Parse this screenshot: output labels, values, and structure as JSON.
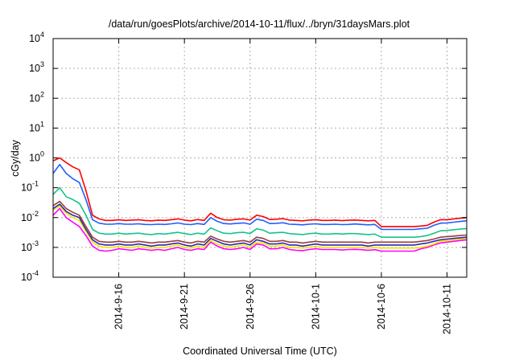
{
  "chart_data": {
    "type": "line",
    "title": "/data/run/goesPlots/archive/2014-10-11/flux/../bryn/31daysMars.plot",
    "xlabel": "Coordinated Universal Time (UTC)",
    "ylabel": "cGy/day",
    "yscale": "log",
    "ylim": [
      0.0001,
      10000
    ],
    "xlim": [
      "2014-09-11T00:00",
      "2014-10-12T12:00"
    ],
    "grid": true,
    "y_ticks": [
      {
        "value": 0.0001,
        "base": "10",
        "exp": "-4"
      },
      {
        "value": 0.001,
        "base": "10",
        "exp": "-3"
      },
      {
        "value": 0.01,
        "base": "10",
        "exp": "-2"
      },
      {
        "value": 0.1,
        "base": "10",
        "exp": "-1"
      },
      {
        "value": 1,
        "base": "10",
        "exp": "0"
      },
      {
        "value": 10,
        "base": "10",
        "exp": "1"
      },
      {
        "value": 100,
        "base": "10",
        "exp": "2"
      },
      {
        "value": 1000,
        "base": "10",
        "exp": "3"
      },
      {
        "value": 10000,
        "base": "10",
        "exp": "4"
      }
    ],
    "x_ticks": [
      {
        "date": "2014-09-16",
        "label": "2014-9-16"
      },
      {
        "date": "2014-09-21",
        "label": "2014-9-21"
      },
      {
        "date": "2014-09-26",
        "label": "2014-9-26"
      },
      {
        "date": "2014-10-01",
        "label": "2014-10-1"
      },
      {
        "date": "2014-10-06",
        "label": "2014-10-6"
      },
      {
        "date": "2014-10-11",
        "label": "2014-10-11"
      }
    ],
    "x": [
      "2014-09-11T00:00",
      "2014-09-11T12:00",
      "2014-09-12T00:00",
      "2014-09-12T12:00",
      "2014-09-13T00:00",
      "2014-09-13T12:00",
      "2014-09-14T00:00",
      "2014-09-14T12:00",
      "2014-09-15T00:00",
      "2014-09-15T12:00",
      "2014-09-16T00:00",
      "2014-09-16T12:00",
      "2014-09-17T00:00",
      "2014-09-17T12:00",
      "2014-09-18T00:00",
      "2014-09-18T12:00",
      "2014-09-19T00:00",
      "2014-09-19T12:00",
      "2014-09-20T00:00",
      "2014-09-20T12:00",
      "2014-09-21T00:00",
      "2014-09-21T12:00",
      "2014-09-22T00:00",
      "2014-09-22T12:00",
      "2014-09-23T00:00",
      "2014-09-23T12:00",
      "2014-09-24T00:00",
      "2014-09-24T12:00",
      "2014-09-25T00:00",
      "2014-09-25T12:00",
      "2014-09-26T00:00",
      "2014-09-26T12:00",
      "2014-09-27T00:00",
      "2014-09-27T12:00",
      "2014-09-28T00:00",
      "2014-09-28T12:00",
      "2014-09-29T00:00",
      "2014-09-29T12:00",
      "2014-09-30T00:00",
      "2014-09-30T12:00",
      "2014-10-01T00:00",
      "2014-10-01T12:00",
      "2014-10-02T00:00",
      "2014-10-02T12:00",
      "2014-10-03T00:00",
      "2014-10-03T12:00",
      "2014-10-04T00:00",
      "2014-10-04T12:00",
      "2014-10-05T00:00",
      "2014-10-05T12:00",
      "2014-10-06T00:00",
      "2014-10-06T12:00",
      "2014-10-07T00:00",
      "2014-10-07T12:00",
      "2014-10-08T00:00",
      "2014-10-08T12:00",
      "2014-10-09T00:00",
      "2014-10-09T12:00",
      "2014-10-10T00:00",
      "2014-10-10T12:00",
      "2014-10-11T00:00",
      "2014-10-11T12:00",
      "2014-10-12T00:00",
      "2014-10-12T12:00"
    ],
    "series": [
      {
        "color": "#ff0000",
        "values": [
          0.8,
          1.0,
          0.7,
          0.5,
          0.4,
          0.08,
          0.012,
          0.009,
          0.008,
          0.008,
          0.0085,
          0.008,
          0.0082,
          0.0085,
          0.008,
          0.0078,
          0.0082,
          0.008,
          0.0085,
          0.009,
          0.0082,
          0.0078,
          0.0086,
          0.008,
          0.014,
          0.01,
          0.0085,
          0.0082,
          0.0088,
          0.009,
          0.0082,
          0.012,
          0.0108,
          0.0086,
          0.0088,
          0.0092,
          0.0082,
          0.008,
          0.0078,
          0.0082,
          0.0085,
          0.008,
          0.008,
          0.0082,
          0.0079,
          0.0081,
          0.0083,
          0.008,
          0.0078,
          0.008,
          0.005,
          0.005,
          0.005,
          0.005,
          0.005,
          0.005,
          0.0052,
          0.0055,
          0.007,
          0.0085,
          0.0085,
          0.009,
          0.0095,
          0.01
        ]
      },
      {
        "color": "#1f5fff",
        "values": [
          0.3,
          0.6,
          0.3,
          0.2,
          0.15,
          0.04,
          0.0085,
          0.0065,
          0.006,
          0.006,
          0.0063,
          0.006,
          0.006,
          0.0062,
          0.0059,
          0.0058,
          0.006,
          0.0059,
          0.0062,
          0.0066,
          0.006,
          0.0058,
          0.0063,
          0.0059,
          0.01,
          0.0075,
          0.0063,
          0.0061,
          0.0064,
          0.0066,
          0.006,
          0.0088,
          0.008,
          0.0063,
          0.0064,
          0.0067,
          0.006,
          0.0059,
          0.0057,
          0.006,
          0.0062,
          0.0059,
          0.0059,
          0.006,
          0.0058,
          0.0059,
          0.0061,
          0.0059,
          0.0057,
          0.0059,
          0.004,
          0.004,
          0.004,
          0.004,
          0.004,
          0.004,
          0.0042,
          0.0044,
          0.0055,
          0.0065,
          0.0066,
          0.007,
          0.0074,
          0.0078
        ]
      },
      {
        "color": "#18c28c",
        "values": [
          0.06,
          0.1,
          0.05,
          0.04,
          0.03,
          0.012,
          0.004,
          0.003,
          0.0028,
          0.0028,
          0.003,
          0.0028,
          0.0029,
          0.003,
          0.0028,
          0.0027,
          0.0029,
          0.0028,
          0.003,
          0.0032,
          0.0029,
          0.0027,
          0.003,
          0.0028,
          0.0045,
          0.0036,
          0.003,
          0.0029,
          0.0031,
          0.0032,
          0.0029,
          0.0042,
          0.0038,
          0.003,
          0.0031,
          0.0032,
          0.0029,
          0.0028,
          0.0027,
          0.0029,
          0.003,
          0.0028,
          0.0028,
          0.0029,
          0.0028,
          0.0029,
          0.0029,
          0.0028,
          0.0027,
          0.0028,
          0.0022,
          0.0022,
          0.0022,
          0.0022,
          0.0022,
          0.0022,
          0.0023,
          0.0025,
          0.003,
          0.0036,
          0.0037,
          0.0039,
          0.0041,
          0.0043
        ]
      },
      {
        "color": "#9a3d3d",
        "values": [
          0.025,
          0.035,
          0.02,
          0.015,
          0.012,
          0.005,
          0.0022,
          0.0016,
          0.0015,
          0.0015,
          0.0016,
          0.0015,
          0.0015,
          0.0016,
          0.0015,
          0.0014,
          0.0015,
          0.0015,
          0.0016,
          0.0017,
          0.0015,
          0.0014,
          0.0016,
          0.0015,
          0.0024,
          0.0019,
          0.0016,
          0.0015,
          0.0016,
          0.0017,
          0.0015,
          0.0022,
          0.002,
          0.0016,
          0.0016,
          0.0017,
          0.0015,
          0.0015,
          0.0014,
          0.0015,
          0.0016,
          0.0015,
          0.0015,
          0.0015,
          0.0015,
          0.0015,
          0.0015,
          0.0015,
          0.0014,
          0.0015,
          0.0015,
          0.0015,
          0.0015,
          0.0015,
          0.0015,
          0.0015,
          0.0016,
          0.0017,
          0.0019,
          0.0022,
          0.0023,
          0.0024,
          0.0025,
          0.0026
        ]
      },
      {
        "color": "#2a2ab0",
        "values": [
          0.02,
          0.028,
          0.016,
          0.012,
          0.01,
          0.004,
          0.0018,
          0.0013,
          0.0012,
          0.0012,
          0.0013,
          0.0012,
          0.0012,
          0.0013,
          0.0012,
          0.0011,
          0.0012,
          0.0012,
          0.0013,
          0.0014,
          0.0012,
          0.0011,
          0.0013,
          0.0012,
          0.002,
          0.0016,
          0.0013,
          0.0012,
          0.0013,
          0.0014,
          0.0012,
          0.0018,
          0.0016,
          0.0013,
          0.0013,
          0.0014,
          0.0012,
          0.0012,
          0.0011,
          0.0012,
          0.0013,
          0.0012,
          0.0012,
          0.0012,
          0.0012,
          0.0012,
          0.0012,
          0.0012,
          0.0011,
          0.0012,
          0.0012,
          0.0012,
          0.0012,
          0.0012,
          0.0012,
          0.0012,
          0.0013,
          0.0014,
          0.0016,
          0.0018,
          0.0019,
          0.002,
          0.0021,
          0.0022
        ]
      },
      {
        "color": "#f2e600",
        "values": [
          0.018,
          0.024,
          0.014,
          0.01,
          0.008,
          0.0035,
          0.0015,
          0.0011,
          0.001,
          0.001,
          0.0011,
          0.001,
          0.001,
          0.0011,
          0.001,
          0.00095,
          0.001,
          0.001,
          0.0011,
          0.0012,
          0.001,
          0.00095,
          0.0011,
          0.001,
          0.0017,
          0.0013,
          0.0011,
          0.001,
          0.0011,
          0.0012,
          0.001,
          0.0015,
          0.0014,
          0.0011,
          0.0011,
          0.0012,
          0.001,
          0.001,
          0.00095,
          0.001,
          0.0011,
          0.001,
          0.001,
          0.001,
          0.001,
          0.001,
          0.001,
          0.001,
          0.00095,
          0.001,
          0.00095,
          0.00095,
          0.00095,
          0.00095,
          0.00095,
          0.00095,
          0.001,
          0.0011,
          0.0013,
          0.0016,
          0.0017,
          0.0018,
          0.0019,
          0.002
        ]
      },
      {
        "color": "#ff00ff",
        "values": [
          0.012,
          0.02,
          0.01,
          0.007,
          0.005,
          0.0025,
          0.0011,
          0.0008,
          0.00075,
          0.0008,
          0.0009,
          0.00085,
          0.0008,
          0.0009,
          0.00085,
          0.0008,
          0.00085,
          0.0008,
          0.0009,
          0.001,
          0.00085,
          0.0008,
          0.0009,
          0.00085,
          0.0015,
          0.0011,
          0.0009,
          0.00085,
          0.0009,
          0.001,
          0.00085,
          0.0013,
          0.0012,
          0.0009,
          0.0009,
          0.001,
          0.00085,
          0.0008,
          0.00078,
          0.00085,
          0.0009,
          0.00085,
          0.00085,
          0.00085,
          0.00082,
          0.00085,
          0.00086,
          0.00084,
          0.0008,
          0.00084,
          0.00075,
          0.00075,
          0.00075,
          0.00075,
          0.00075,
          0.00075,
          0.0009,
          0.001,
          0.0012,
          0.0014,
          0.0015,
          0.0016,
          0.0017,
          0.0018
        ]
      }
    ]
  }
}
